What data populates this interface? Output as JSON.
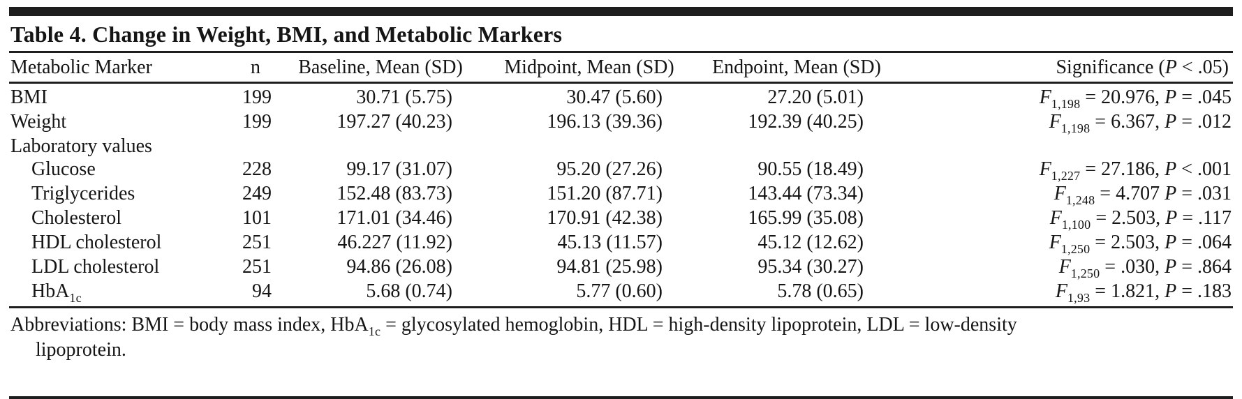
{
  "page": {
    "title": "Table 4. Change in Weight, BMI, and Metabolic Markers"
  },
  "table": {
    "columns": {
      "marker": "Metabolic Marker",
      "n": "n",
      "baseline": "Baseline, Mean (SD)",
      "midpoint": "Midpoint, Mean (SD)",
      "endpoint": "Endpoint, Mean (SD)",
      "significance_pre": "Significance (",
      "significance_p": "P",
      "significance_post": " < .05)"
    },
    "rows": [
      {
        "label": "BMI",
        "n": "199",
        "baseline": "30.71 (5.75)",
        "midpoint": "30.47 (5.60)",
        "endpoint": "27.20 (5.01)",
        "sig": {
          "f": "F",
          "sub": "1,198",
          "stat": " = 20.976, ",
          "p": "P",
          "pval": " = .045"
        }
      },
      {
        "label": "Weight",
        "n": "199",
        "baseline": "197.27 (40.23)",
        "midpoint": "196.13 (39.36)",
        "endpoint": "192.39 (40.25)",
        "sig": {
          "f": "F",
          "sub": "1,198",
          "stat": " = 6.367, ",
          "p": "P",
          "pval": " = .012"
        }
      },
      {
        "label": "Laboratory values"
      },
      {
        "label": "Glucose",
        "n": "228",
        "baseline": "99.17 (31.07)",
        "midpoint": "95.20 (27.26)",
        "endpoint": "90.55 (18.49)",
        "sig": {
          "f": "F",
          "sub": "1,227",
          "stat": " = 27.186, ",
          "p": "P",
          "pval": " < .001"
        }
      },
      {
        "label": "Triglycerides",
        "n": "249",
        "baseline": "152.48 (83.73)",
        "midpoint": "151.20 (87.71)",
        "endpoint": "143.44 (73.34)",
        "sig": {
          "f": "F",
          "sub": "1,248",
          "stat": " = 4.707 ",
          "p": "P",
          "pval": " = .031"
        }
      },
      {
        "label": "Cholesterol",
        "n": "101",
        "baseline": "171.01 (34.46)",
        "midpoint": "170.91 (42.38)",
        "endpoint": "165.99 (35.08)",
        "sig": {
          "f": "F",
          "sub": "1,100",
          "stat": " = 2.503, ",
          "p": "P",
          "pval": " = .117"
        }
      },
      {
        "label": "HDL cholesterol",
        "n": "251",
        "baseline": "46.227 (11.92)",
        "midpoint": "45.13 (11.57)",
        "endpoint": "45.12 (12.62)",
        "sig": {
          "f": "F",
          "sub": "1,250",
          "stat": " = 2.503, ",
          "p": "P",
          "pval": " = .064"
        }
      },
      {
        "label": "LDL cholesterol",
        "n": "251",
        "baseline": "94.86 (26.08)",
        "midpoint": "94.81 (25.98)",
        "endpoint": "95.34 (30.27)",
        "sig": {
          "f": "F",
          "sub": "1,250",
          "stat": " = .030, ",
          "p": "P",
          "pval": " = .864"
        }
      },
      {
        "label": "HbA",
        "label_sub": "1c",
        "n": "94",
        "baseline": "5.68 (0.74)",
        "midpoint": "5.77 (0.60)",
        "endpoint": "5.78 (0.65)",
        "sig": {
          "f": "F",
          "sub": "1,93",
          "stat": " = 1.821, ",
          "p": "P",
          "pval": " = .183"
        }
      }
    ]
  },
  "footnote": {
    "line1_pre": "Abbreviations: BMI = body mass index, HbA",
    "line1_sub": "1c",
    "line1_post": " = glycosylated hemoglobin, HDL = high-density lipoprotein, LDL = low-density",
    "line2": "lipoprotein."
  }
}
